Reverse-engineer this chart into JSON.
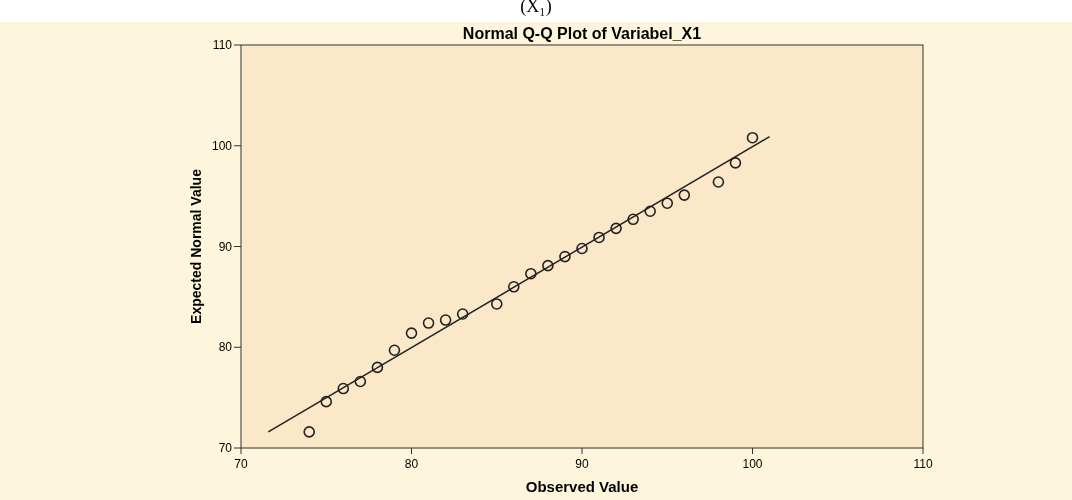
{
  "chart_data": {
    "type": "scatter",
    "title": "Normal Q-Q Plot of Variabel_X1",
    "xlabel": "Observed Value",
    "ylabel": "Expected Normal Value",
    "annotations": [
      "(X₁)"
    ],
    "series": [
      {
        "color": "#222222",
        "marker": "circle",
        "x": [
          74,
          75,
          76,
          77,
          78,
          79,
          80,
          81,
          82,
          83,
          85,
          86,
          87,
          88,
          89,
          90,
          91,
          92,
          93,
          94,
          95,
          96,
          98,
          99,
          100
        ],
        "values": [
          71.6,
          74.6,
          75.9,
          76.6,
          78.0,
          79.7,
          81.4,
          82.4,
          82.7,
          83.3,
          84.3,
          86.0,
          87.3,
          88.1,
          89.0,
          89.8,
          90.9,
          91.8,
          92.7,
          93.5,
          94.3,
          95.1,
          96.4,
          98.3,
          100.8
        ]
      },
      {
        "type": "line",
        "color": "#222222",
        "marker": "none",
        "line_style": "solid",
        "x": [
          71.6,
          101
        ],
        "values": [
          71.6,
          100.9
        ]
      }
    ],
    "xlim": [
      70,
      110
    ],
    "ylim": [
      70,
      110
    ],
    "xticks": [
      70,
      80,
      90,
      100,
      110
    ],
    "yticks": [
      70,
      80,
      90,
      100,
      110
    ],
    "grid": false
  }
}
